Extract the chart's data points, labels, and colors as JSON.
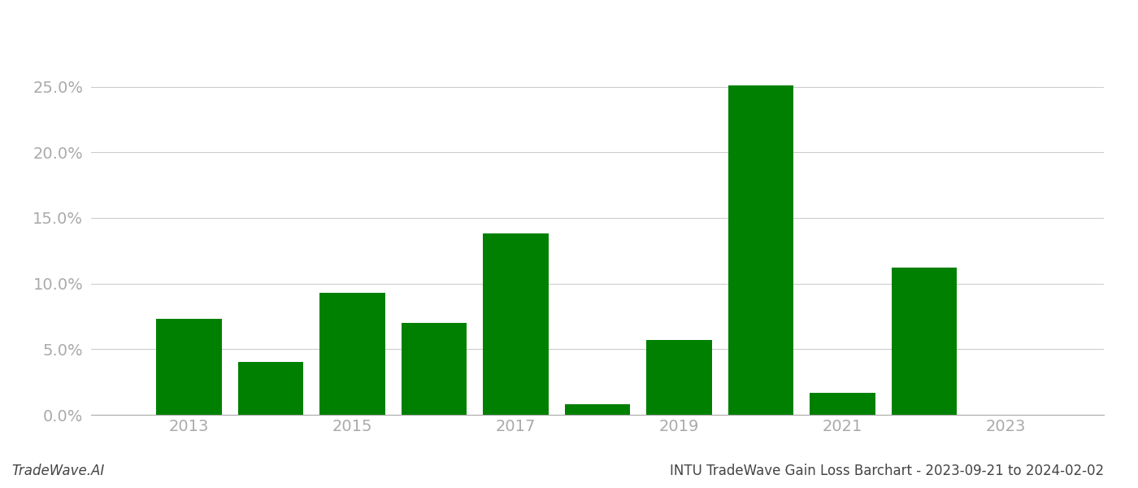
{
  "years": [
    2013,
    2014,
    2015,
    2016,
    2017,
    2018,
    2019,
    2020,
    2021,
    2022,
    2023
  ],
  "values": [
    0.073,
    0.04,
    0.093,
    0.07,
    0.138,
    0.008,
    0.057,
    0.251,
    0.017,
    0.112,
    0.0
  ],
  "bar_color": "#008000",
  "background_color": "#ffffff",
  "grid_color": "#cccccc",
  "title": "INTU TradeWave Gain Loss Barchart - 2023-09-21 to 2024-02-02",
  "watermark": "TradeWave.AI",
  "ylim": [
    0,
    0.29
  ],
  "yticks": [
    0.0,
    0.05,
    0.1,
    0.15,
    0.2,
    0.25
  ],
  "xtick_labels": [
    "2013",
    "2015",
    "2017",
    "2019",
    "2021",
    "2023"
  ],
  "xtick_positions": [
    2013,
    2015,
    2017,
    2019,
    2021,
    2023
  ],
  "title_fontsize": 12,
  "tick_fontsize": 14,
  "watermark_fontsize": 12,
  "axis_label_color": "#aaaaaa",
  "title_color": "#444444",
  "watermark_color": "#444444"
}
